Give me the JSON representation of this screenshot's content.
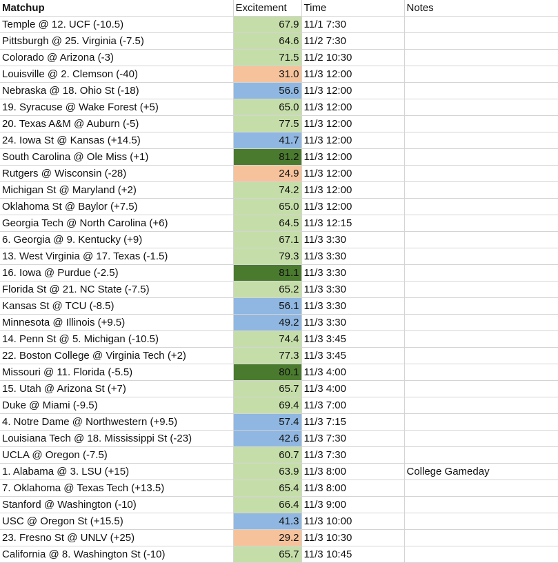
{
  "columns": {
    "matchup": "Matchup",
    "excitement": "Excitement",
    "time": "Time",
    "notes": "Notes"
  },
  "colors": {
    "green": "#c5dea9",
    "orange": "#f6c29b",
    "blue": "#8fb7e1",
    "dark": "#4a7a2e"
  },
  "rows": [
    {
      "matchup": "Temple @ 12. UCF (-10.5)",
      "excitement": "67.9",
      "time": "11/1 7:30",
      "notes": "",
      "color": "green"
    },
    {
      "matchup": "Pittsburgh @ 25. Virginia (-7.5)",
      "excitement": "64.6",
      "time": "11/2 7:30",
      "notes": "",
      "color": "green"
    },
    {
      "matchup": "Colorado @ Arizona (-3)",
      "excitement": "71.5",
      "time": "11/2 10:30",
      "notes": "",
      "color": "green"
    },
    {
      "matchup": "Louisville @ 2. Clemson (-40)",
      "excitement": "31.0",
      "time": "11/3 12:00",
      "notes": "",
      "color": "orange"
    },
    {
      "matchup": "Nebraska @ 18. Ohio St (-18)",
      "excitement": "56.6",
      "time": "11/3 12:00",
      "notes": "",
      "color": "blue"
    },
    {
      "matchup": "19. Syracuse @ Wake Forest (+5)",
      "excitement": "65.0",
      "time": "11/3 12:00",
      "notes": "",
      "color": "green"
    },
    {
      "matchup": "20. Texas A&M @ Auburn (-5)",
      "excitement": "77.5",
      "time": "11/3 12:00",
      "notes": "",
      "color": "green"
    },
    {
      "matchup": "24. Iowa St @ Kansas (+14.5)",
      "excitement": "41.7",
      "time": "11/3 12:00",
      "notes": "",
      "color": "blue"
    },
    {
      "matchup": "South Carolina @ Ole Miss (+1)",
      "excitement": "81.2",
      "time": "11/3 12:00",
      "notes": "",
      "color": "dark"
    },
    {
      "matchup": "Rutgers @ Wisconsin (-28)",
      "excitement": "24.9",
      "time": "11/3 12:00",
      "notes": "",
      "color": "orange"
    },
    {
      "matchup": "Michigan St @ Maryland (+2)",
      "excitement": "74.2",
      "time": "11/3 12:00",
      "notes": "",
      "color": "green"
    },
    {
      "matchup": "Oklahoma St @ Baylor (+7.5)",
      "excitement": "65.0",
      "time": "11/3 12:00",
      "notes": "",
      "color": "green"
    },
    {
      "matchup": "Georgia Tech @ North Carolina (+6)",
      "excitement": "64.5",
      "time": "11/3 12:15",
      "notes": "",
      "color": "green"
    },
    {
      "matchup": "6. Georgia @ 9. Kentucky (+9)",
      "excitement": "67.1",
      "time": "11/3 3:30",
      "notes": "",
      "color": "green"
    },
    {
      "matchup": "13. West Virginia @ 17. Texas (-1.5)",
      "excitement": "79.3",
      "time": "11/3 3:30",
      "notes": "",
      "color": "green"
    },
    {
      "matchup": "16. Iowa @ Purdue (-2.5)",
      "excitement": "81.1",
      "time": "11/3 3:30",
      "notes": "",
      "color": "dark"
    },
    {
      "matchup": "Florida St @ 21. NC State (-7.5)",
      "excitement": "65.2",
      "time": "11/3 3:30",
      "notes": "",
      "color": "green"
    },
    {
      "matchup": "Kansas St @ TCU (-8.5)",
      "excitement": "56.1",
      "time": "11/3 3:30",
      "notes": "",
      "color": "blue"
    },
    {
      "matchup": "Minnesota @ Illinois (+9.5)",
      "excitement": "49.2",
      "time": "11/3 3:30",
      "notes": "",
      "color": "blue"
    },
    {
      "matchup": "14. Penn St @ 5. Michigan (-10.5)",
      "excitement": "74.4",
      "time": "11/3 3:45",
      "notes": "",
      "color": "green"
    },
    {
      "matchup": "22. Boston College @ Virginia Tech (+2)",
      "excitement": "77.3",
      "time": "11/3 3:45",
      "notes": "",
      "color": "green"
    },
    {
      "matchup": "Missouri @ 11. Florida (-5.5)",
      "excitement": "80.1",
      "time": "11/3 4:00",
      "notes": "",
      "color": "dark"
    },
    {
      "matchup": "15. Utah @ Arizona St (+7)",
      "excitement": "65.7",
      "time": "11/3 4:00",
      "notes": "",
      "color": "green"
    },
    {
      "matchup": "Duke @ Miami (-9.5)",
      "excitement": "69.4",
      "time": "11/3 7:00",
      "notes": "",
      "color": "green"
    },
    {
      "matchup": "4. Notre Dame @ Northwestern (+9.5)",
      "excitement": "57.4",
      "time": "11/3 7:15",
      "notes": "",
      "color": "blue"
    },
    {
      "matchup": "Louisiana Tech @ 18. Mississippi St (-23)",
      "excitement": "42.6",
      "time": "11/3 7:30",
      "notes": "",
      "color": "blue"
    },
    {
      "matchup": "UCLA @ Oregon (-7.5)",
      "excitement": "60.7",
      "time": "11/3 7:30",
      "notes": "",
      "color": "green"
    },
    {
      "matchup": "1. Alabama @ 3. LSU (+15)",
      "excitement": "63.9",
      "time": "11/3 8:00",
      "notes": "College Gameday",
      "color": "green"
    },
    {
      "matchup": "7. Oklahoma @ Texas Tech (+13.5)",
      "excitement": "65.4",
      "time": "11/3 8:00",
      "notes": "",
      "color": "green"
    },
    {
      "matchup": "Stanford @ Washington (-10)",
      "excitement": "66.4",
      "time": "11/3 9:00",
      "notes": "",
      "color": "green"
    },
    {
      "matchup": "USC @ Oregon St (+15.5)",
      "excitement": "41.3",
      "time": "11/3 10:00",
      "notes": "",
      "color": "blue"
    },
    {
      "matchup": "23. Fresno St @ UNLV (+25)",
      "excitement": "29.2",
      "time": "11/3 10:30",
      "notes": "",
      "color": "orange"
    },
    {
      "matchup": "California @ 8. Washington St (-10)",
      "excitement": "65.7",
      "time": "11/3 10:45",
      "notes": "",
      "color": "green"
    }
  ]
}
